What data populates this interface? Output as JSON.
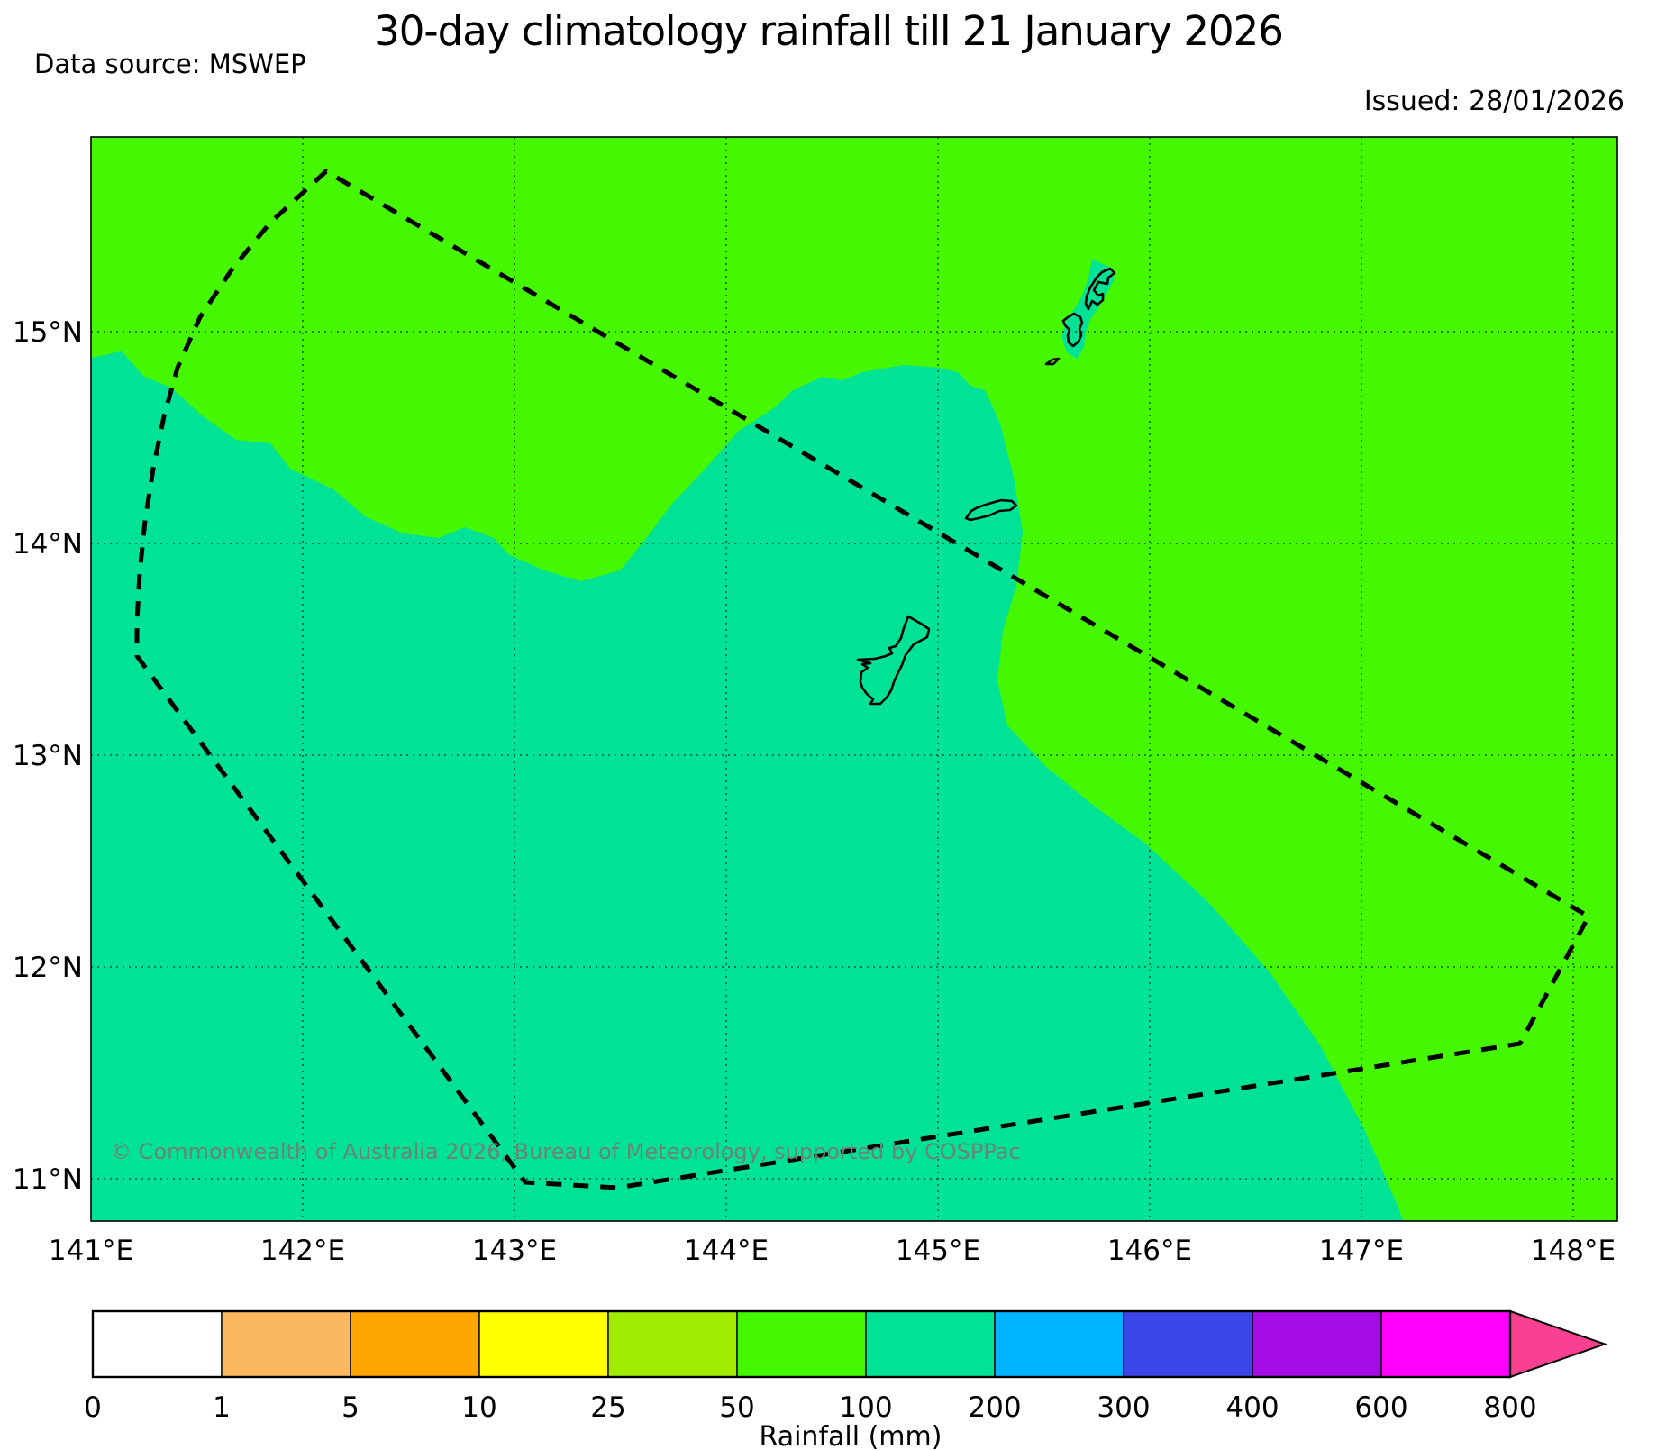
{
  "header": {
    "title": "30-day climatology rainfall till 21 January 2026",
    "data_source": "Data source: MSWEP",
    "issued": "Issued: 28/01/2026"
  },
  "map": {
    "copyright": "© Commonwealth of Australia 2026, Bureau of Meteorology, supported by COSPPac",
    "x_ticks": [
      "141°E",
      "142°E",
      "143°E",
      "144°E",
      "145°E",
      "146°E",
      "147°E",
      "148°E"
    ],
    "y_ticks": [
      "15°N",
      "14°N",
      "13°N",
      "12°N",
      "11°N"
    ],
    "background_band_color": "#46f702",
    "wet_band_color": "#00e396"
  },
  "colorbar": {
    "label": "Rainfall (mm)",
    "tick_labels": [
      "0",
      "1",
      "5",
      "10",
      "25",
      "50",
      "100",
      "200",
      "300",
      "400",
      "600",
      "800"
    ],
    "segment_colors": [
      "#ffffff",
      "#fbb860",
      "#ffa600",
      "#ffff00",
      "#a0eb00",
      "#46f702",
      "#00e396",
      "#00b4ff",
      "#3c46e6",
      "#a50ce6",
      "#ff00ff"
    ],
    "overflow_arrow_color": "#fa4191"
  }
}
